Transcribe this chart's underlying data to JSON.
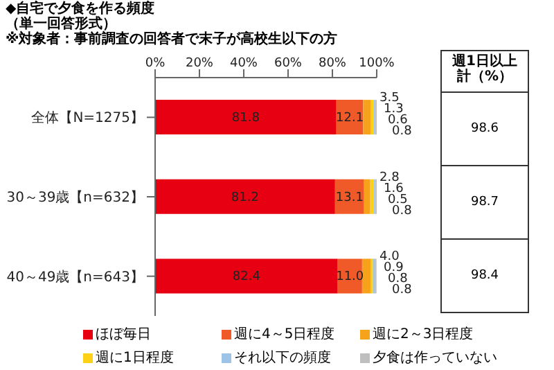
{
  "chart_data": {
    "type": "bar",
    "orientation": "horizontal",
    "stacked": true,
    "title": "◆自宅で夕食を作る頻度",
    "subtitle": "（単一回答形式）",
    "annotations": [
      "※対象者：事前調査の回答者で末子が高校生以下の方",
      "週1日以上計（%）",
      "98.6",
      "98.7",
      "98.4"
    ],
    "categories": [
      "全体【N=1275】",
      "30～39歳【n=632】",
      "40～49歳【n=643】"
    ],
    "series": [
      {
        "name": "ほぼ毎日",
        "color": "#e60012",
        "values": [
          81.8,
          81.2,
          82.4
        ],
        "value_labels": [
          "81.8",
          "81.2",
          "82.4"
        ]
      },
      {
        "name": "週に4～5日程度",
        "color": "#f05a28",
        "values": [
          12.1,
          13.1,
          11.0
        ],
        "value_labels": [
          "12.1",
          "13.1",
          "11.0"
        ]
      },
      {
        "name": "週に2～3日程度",
        "color": "#f7a21b",
        "values": [
          3.5,
          2.8,
          4.0
        ],
        "value_labels": [
          "3.5",
          "2.8",
          "4.0"
        ]
      },
      {
        "name": "週に1日程度",
        "color": "#fcd116",
        "values": [
          1.3,
          1.6,
          0.9
        ],
        "value_labels": [
          "1.3",
          "1.6",
          "0.9"
        ]
      },
      {
        "name": "それ以下の頻度",
        "color": "#9dc3e6",
        "values": [
          0.6,
          0.5,
          0.8
        ],
        "value_labels": [
          "0.6",
          "0.5",
          "0.8"
        ]
      },
      {
        "name": "夕食は作っていない",
        "color": "#bfbfbf",
        "values": [
          0.8,
          0.8,
          0.8
        ],
        "value_labels": [
          "0.8",
          "0.8",
          "0.8"
        ]
      }
    ],
    "xlim": [
      0,
      100
    ],
    "xticks": [
      {
        "value": 0,
        "label": "0%"
      },
      {
        "value": 20,
        "label": "20%"
      },
      {
        "value": 40,
        "label": "40%"
      },
      {
        "value": 60,
        "label": "60%"
      },
      {
        "value": 80,
        "label": "80%"
      },
      {
        "value": 100,
        "label": "100%"
      }
    ],
    "legend": "bottom",
    "grid": false
  }
}
